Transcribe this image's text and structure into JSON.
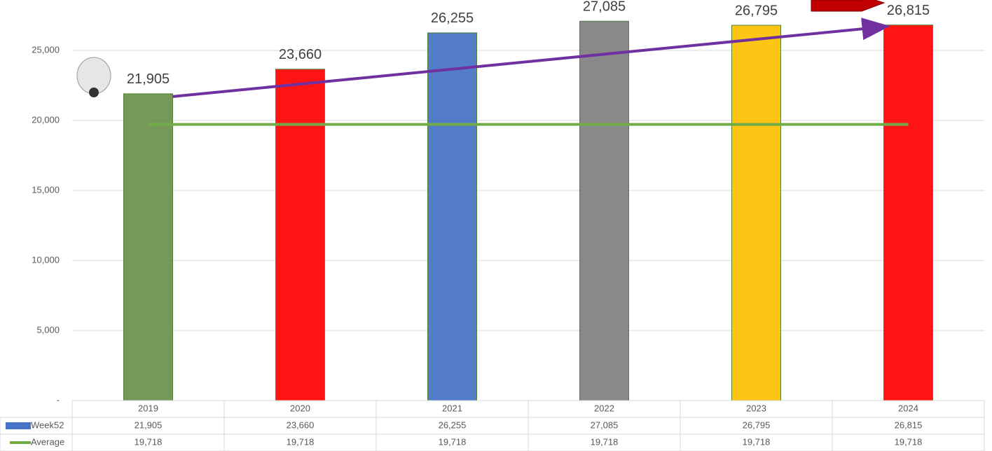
{
  "chart_data": {
    "type": "bar",
    "categories": [
      "2019",
      "2020",
      "2021",
      "2022",
      "2023",
      "2024"
    ],
    "series": [
      {
        "name": "Week52",
        "color": "#4472c4",
        "colors": [
          "#6a8f4a",
          "#ff0000",
          "#4472c4",
          "#7f7f7f",
          "#ffc000",
          "#ff0000"
        ],
        "values": [
          21905,
          23660,
          26255,
          27085,
          26795,
          26815
        ],
        "value_labels": [
          "21,905",
          "23,660",
          "26,255",
          "27,085",
          "26,795",
          "26,815"
        ]
      },
      {
        "name": "Average",
        "type": "line",
        "color": "#70ad47",
        "values": [
          19718,
          19718,
          19718,
          19718,
          19718,
          19718
        ],
        "value_labels": [
          "19,718",
          "19,718",
          "19,718",
          "19,718",
          "19,718",
          "19,718"
        ]
      }
    ],
    "ylim": [
      0,
      28000
    ],
    "yticks": [
      {
        "value": 0,
        "label": "-"
      },
      {
        "value": 5000,
        "label": "5,000"
      },
      {
        "value": 10000,
        "label": "10,000"
      },
      {
        "value": 15000,
        "label": "15,000"
      },
      {
        "value": 20000,
        "label": "20,000"
      },
      {
        "value": 25000,
        "label": "25,000"
      }
    ],
    "grid": true
  }
}
